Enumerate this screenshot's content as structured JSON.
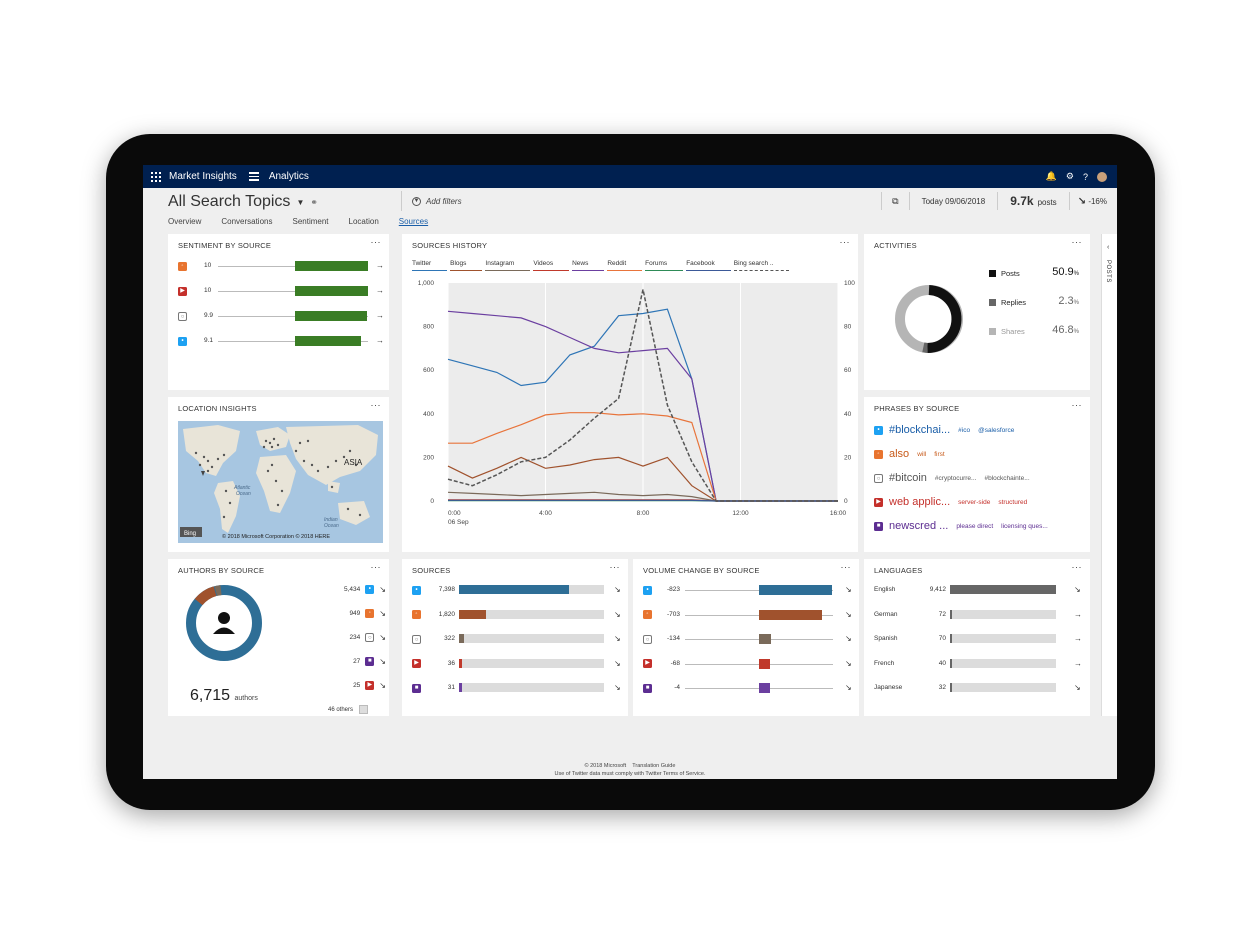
{
  "topbar": {
    "app_name": "Market Insights",
    "section": "Analytics",
    "help": "?"
  },
  "header": {
    "title": "All Search Topics",
    "add_filters": "Add filters",
    "date": "Today 09/06/2018",
    "posts_value": "9.7k",
    "posts_label": "posts",
    "change": "-16%",
    "tabs": [
      "Overview",
      "Conversations",
      "Sentiment",
      "Location",
      "Sources"
    ]
  },
  "sentiment": {
    "title": "SENTIMENT BY SOURCE",
    "rows": [
      {
        "icon": "rss-icon",
        "value": "10",
        "score": 10
      },
      {
        "icon": "youtube-icon",
        "value": "10",
        "score": 10
      },
      {
        "icon": "instagram-icon",
        "value": "9.9",
        "score": 9.9
      },
      {
        "icon": "twitter-icon",
        "value": "9.1",
        "score": 9.1
      }
    ]
  },
  "location": {
    "title": "LOCATION INSIGHTS",
    "asia": "ASIA",
    "atlantic": "Atlantic\nOcean",
    "indian": "Indian\nOcean",
    "bing": "Bing",
    "copyright": "© 2018 Microsoft Corporation © 2018 HERE"
  },
  "authors": {
    "title": "AUTHORS BY SOURCE",
    "total": "6,715",
    "total_label": "authors",
    "rows": [
      {
        "value": "5,434",
        "icon": "twitter-icon"
      },
      {
        "value": "949",
        "icon": "rss-icon"
      },
      {
        "value": "234",
        "icon": "instagram-icon"
      },
      {
        "value": "27",
        "icon": "video-icon"
      },
      {
        "value": "25",
        "icon": "youtube-icon"
      }
    ],
    "others": "46 others"
  },
  "history": {
    "title": "SOURCES HISTORY",
    "legend": [
      {
        "name": "Twitter",
        "color": "#2e75b6"
      },
      {
        "name": "Blogs",
        "color": "#a0522d"
      },
      {
        "name": "Instagram",
        "color": "#7a6a5a"
      },
      {
        "name": "Videos",
        "color": "#c0392b"
      },
      {
        "name": "News",
        "color": "#6b3fa0"
      },
      {
        "name": "Reddit",
        "color": "#e8743b"
      },
      {
        "name": "Forums",
        "color": "#2e8b57"
      },
      {
        "name": "Facebook",
        "color": "#3b5998"
      },
      {
        "name": "Bing search ..",
        "color": "#555555"
      }
    ],
    "x_ticks": [
      "0:00",
      "4:00",
      "8:00",
      "12:00",
      "16:00"
    ],
    "x_sub": "06 Sep",
    "y_left_ticks": [
      "1,000",
      "800",
      "600",
      "400",
      "200",
      "0"
    ],
    "y_right_ticks": [
      "100",
      "80",
      "60",
      "40",
      "20",
      "0"
    ]
  },
  "chart_data": {
    "type": "line",
    "x": [
      0,
      1,
      2,
      3,
      4,
      5,
      6,
      7,
      8,
      9,
      10,
      11,
      12,
      13,
      14,
      15,
      16
    ],
    "ylim": [
      0,
      1000
    ],
    "y2lim": [
      0,
      100
    ],
    "series": [
      {
        "name": "Twitter",
        "values": [
          650,
          620,
          590,
          530,
          545,
          670,
          710,
          850,
          860,
          880,
          560,
          0,
          0,
          0,
          0,
          0,
          0
        ]
      },
      {
        "name": "Blogs",
        "values": [
          160,
          105,
          150,
          200,
          150,
          165,
          190,
          200,
          160,
          200,
          70,
          0,
          0,
          0,
          0,
          0,
          0
        ]
      },
      {
        "name": "Instagram",
        "values": [
          40,
          35,
          30,
          25,
          30,
          35,
          40,
          30,
          25,
          30,
          20,
          0,
          0,
          0,
          0,
          0,
          0
        ]
      },
      {
        "name": "Videos",
        "values": [
          5,
          5,
          5,
          5,
          5,
          5,
          5,
          5,
          5,
          5,
          5,
          0,
          0,
          0,
          0,
          0,
          0
        ]
      },
      {
        "name": "News",
        "values": [
          870,
          860,
          850,
          840,
          800,
          750,
          700,
          680,
          690,
          700,
          560,
          0,
          0,
          0,
          0,
          0,
          0
        ]
      },
      {
        "name": "Reddit",
        "values": [
          265,
          265,
          310,
          350,
          395,
          405,
          405,
          395,
          400,
          390,
          360,
          0,
          0,
          0,
          0,
          0,
          0
        ]
      },
      {
        "name": "Forums",
        "values": [
          2,
          2,
          2,
          2,
          2,
          2,
          2,
          2,
          2,
          2,
          2,
          0,
          0,
          0,
          0,
          0,
          0
        ]
      },
      {
        "name": "Facebook",
        "values": [
          3,
          3,
          3,
          3,
          3,
          3,
          3,
          3,
          3,
          3,
          3,
          0,
          0,
          0,
          0,
          0,
          0
        ]
      },
      {
        "name": "Bing search ..",
        "axis": "right",
        "values": [
          10,
          7,
          12,
          18,
          20,
          28,
          38,
          47,
          97,
          44,
          18,
          0,
          0,
          0,
          0,
          0,
          0
        ]
      }
    ]
  },
  "activities": {
    "title": "ACTIVITIES",
    "items": [
      {
        "label": "Posts",
        "value": "50.9",
        "unit": "%",
        "color": "#111111"
      },
      {
        "label": "Replies",
        "value": "2.3",
        "unit": "%",
        "color": "#666666"
      },
      {
        "label": "Shares",
        "value": "46.8",
        "unit": "%",
        "color": "#b5b5b5"
      }
    ]
  },
  "phrases": {
    "title": "PHRASES BY SOURCE",
    "rows": [
      {
        "icon": "twitter-icon",
        "main": "#blockchai...",
        "p2": "#ico",
        "p3": "@salesforce",
        "color": "#1a5ea8"
      },
      {
        "icon": "rss-icon",
        "main": "also",
        "p2": "will",
        "p3": "first",
        "color": "#c75a1a"
      },
      {
        "icon": "instagram-icon",
        "main": "#bitcoin",
        "p2": "#cryptocurre...",
        "p3": "#blockchainte...",
        "color": "#555555"
      },
      {
        "icon": "youtube-icon",
        "main": "web applic...",
        "p2": "server-side",
        "p3": "structured",
        "color": "#c4302b"
      },
      {
        "icon": "video-icon",
        "main": "newscred ...",
        "p2": "please direct",
        "p3": "licensing ques...",
        "color": "#5c2d91"
      }
    ]
  },
  "sources": {
    "title": "SOURCES",
    "max": 7398,
    "rows": [
      {
        "icon": "twitter-icon",
        "value": "7,398",
        "num": 7398,
        "color": "#2e6e96"
      },
      {
        "icon": "rss-icon",
        "value": "1,820",
        "num": 1820,
        "color": "#a0522d"
      },
      {
        "icon": "instagram-icon",
        "value": "322",
        "num": 322,
        "color": "#7a6a5a"
      },
      {
        "icon": "youtube-icon",
        "value": "36",
        "num": 36,
        "color": "#c0392b"
      },
      {
        "icon": "video-icon",
        "value": "31",
        "num": 31,
        "color": "#6b3fa0"
      }
    ]
  },
  "volume": {
    "title": "VOLUME CHANGE BY SOURCE",
    "rows": [
      {
        "icon": "twitter-icon",
        "value": "-823",
        "num": 823,
        "color": "#2e6e96"
      },
      {
        "icon": "rss-icon",
        "value": "-703",
        "num": 703,
        "color": "#a0522d"
      },
      {
        "icon": "instagram-icon",
        "value": "-134",
        "num": 134,
        "color": "#7a6a5a"
      },
      {
        "icon": "youtube-icon",
        "value": "-68",
        "num": 68,
        "color": "#c0392b"
      },
      {
        "icon": "video-icon",
        "value": "-4",
        "num": 4,
        "color": "#6b3fa0"
      }
    ]
  },
  "languages": {
    "title": "LANGUAGES",
    "max": 9412,
    "rows": [
      {
        "label": "English",
        "value": "9,412",
        "num": 9412,
        "arrow": "↘"
      },
      {
        "label": "German",
        "value": "72",
        "num": 72,
        "arrow": "→"
      },
      {
        "label": "Spanish",
        "value": "70",
        "num": 70,
        "arrow": "→"
      },
      {
        "label": "French",
        "value": "40",
        "num": 40,
        "arrow": "→"
      },
      {
        "label": "Japanese",
        "value": "32",
        "num": 32,
        "arrow": "↘"
      }
    ]
  },
  "sidepanel": {
    "label": "POSTS"
  },
  "footer": {
    "line1a": "© 2018 Microsoft",
    "line1b": "Translation Guide",
    "line2": "Use of Twitter data must comply with Twitter Terms of Service."
  }
}
